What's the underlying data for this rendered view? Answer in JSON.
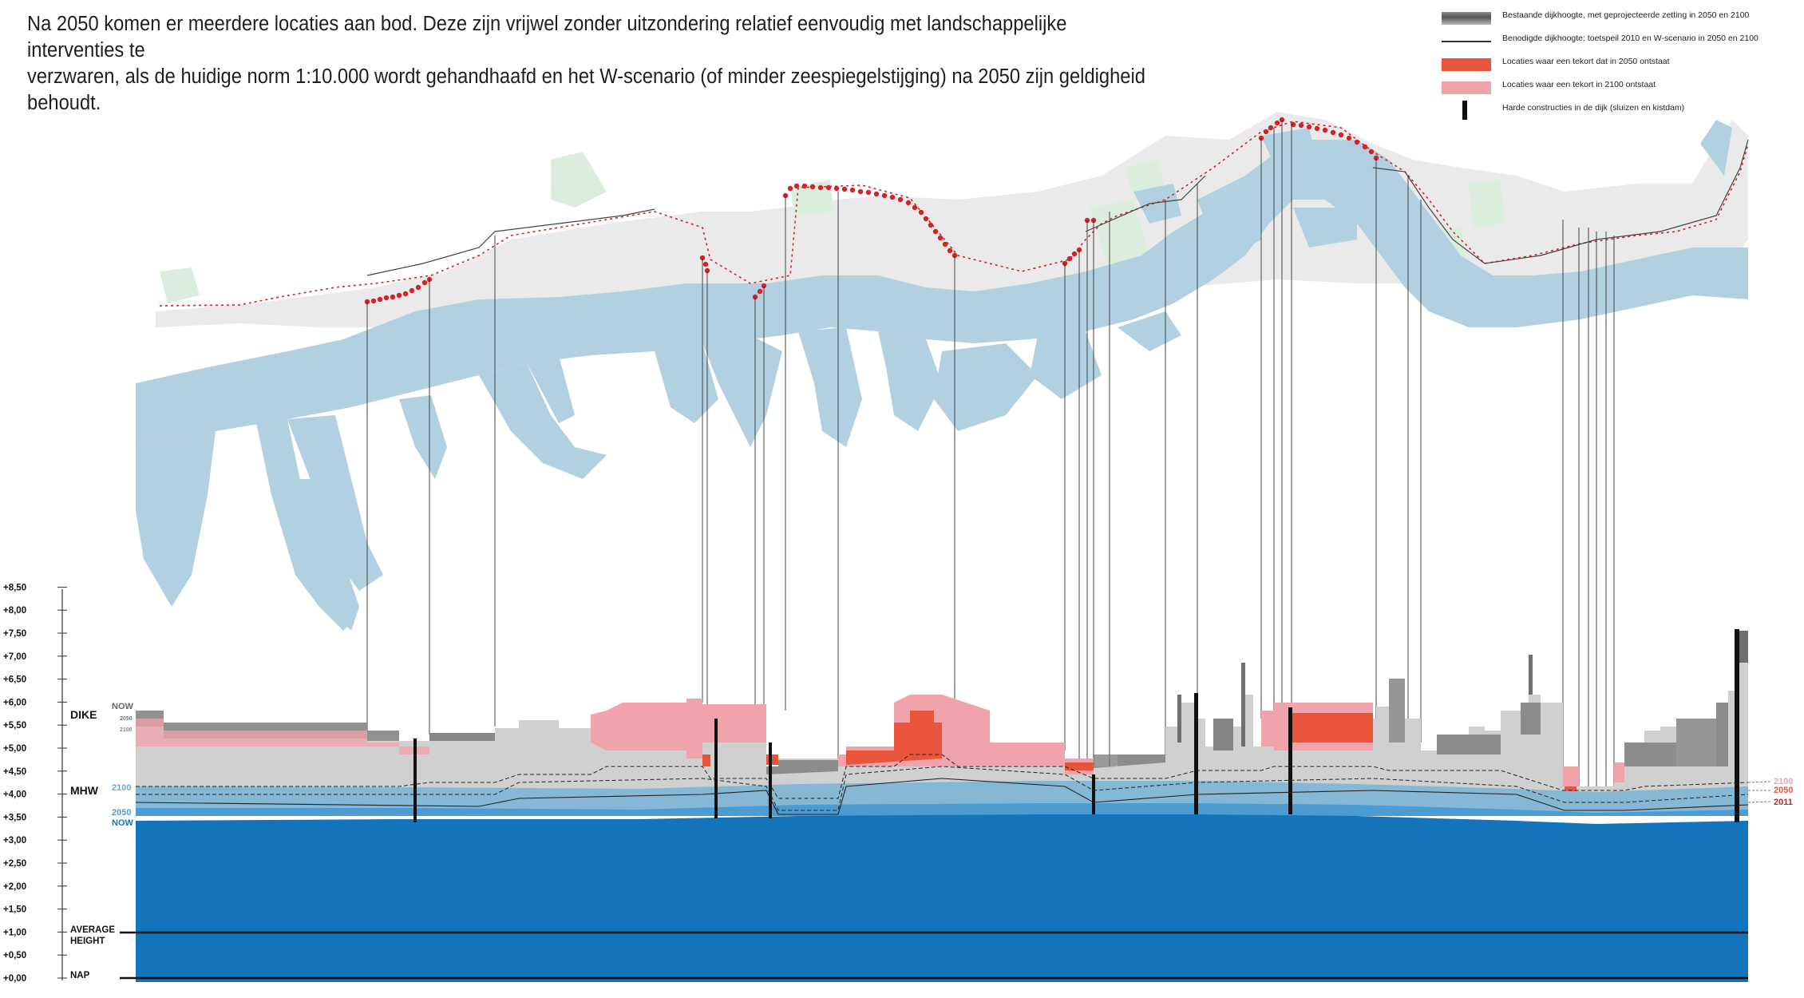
{
  "intro": {
    "line1": "Na 2050 komen er meerdere locaties aan bod. Deze zijn vrijwel zonder uitzondering relatief eenvoudig met landschappelijke interventies te",
    "line2": "verzwaren, als de huidige norm 1:10.000 wordt gehandhaafd en het W-scenario (of minder zeespiegelstijging) na 2050 zijn geldigheid behoudt."
  },
  "legend": [
    {
      "text": "Bestaande dijkhoogte, met geprojecteerde zetting in 2050 en 2100",
      "swatch": "gradient-grey"
    },
    {
      "text": "Benodigde dijkhoogte: toetspeil 2010 en W-scenario in 2050 en 2100",
      "swatch": "line"
    },
    {
      "text": "Locaties waar een tekort dat in 2050 ontstaat",
      "swatch": "#e8553a"
    },
    {
      "text": "Locaties waar een tekort in 2100 ontstaat",
      "swatch": "#f1a3ac"
    },
    {
      "text": "Harde constructies in de dijk (sluizen en kistdam)",
      "swatch": "bar"
    }
  ],
  "yaxis": {
    "ticks": [
      "+0,00",
      "+0,50",
      "+1,00",
      "+1,50",
      "+2,00",
      "+2,50",
      "+3,00",
      "+3,50",
      "+4,00",
      "+4,50",
      "+5,00",
      "+5,50",
      "+6,00",
      "+6,50",
      "+7,00",
      "+7,50",
      "+8,00",
      "+8,50"
    ],
    "min": 0,
    "max": 8.5
  },
  "labels": {
    "dike": "DIKE",
    "mhw": "MHW",
    "average_1": "AVERAGE",
    "average_2": "HEIGHT",
    "nap": "NAP",
    "now_top": "NOW",
    "y2050_top": "2050",
    "y2100_top": "2100",
    "w2100": "2100",
    "w2050": "2050",
    "wnow": "NOW",
    "r2100": "2100",
    "r2050": "2050",
    "r2011": "2011"
  },
  "colors": {
    "water_now": "#1374bb",
    "water_2050": "#4d9bd3",
    "water_2100": "#86b8d6",
    "dike_existing": "#d0d0d0",
    "dike_dark": "#6e6e6e",
    "shortage_2050": "#e8553a",
    "shortage_2100": "#f1a3ac",
    "map_water": "#b3d0e1",
    "map_green": "#dbeedd",
    "map_built": "#d9d9d9",
    "red_dots": "#d2232a"
  },
  "chart_data": {
    "type": "area",
    "description_series": [
      "water NOW",
      "water 2050",
      "water 2100",
      "existing dike height"
    ],
    "water_levels": {
      "now": 3.5,
      "2050": 3.7,
      "2100": 4.15
    },
    "average_height": 1.0,
    "ylim": [
      0,
      8.5
    ]
  }
}
